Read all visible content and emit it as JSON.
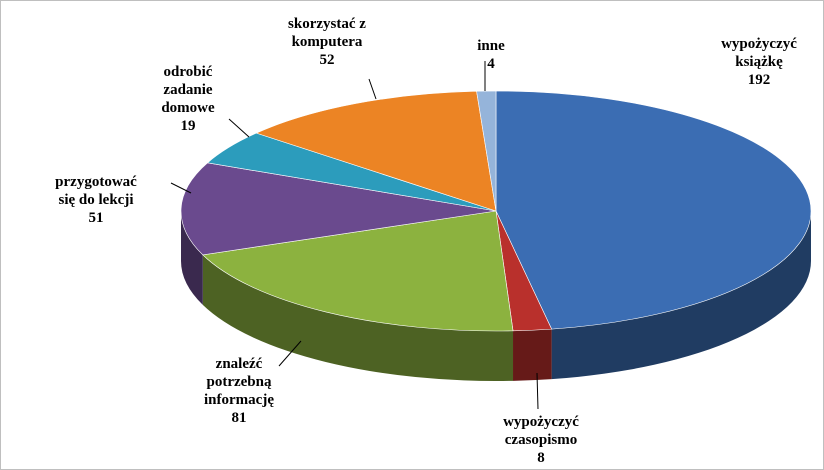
{
  "chart_data": {
    "type": "pie3d",
    "categories": [
      "wypożyczyć\nksiążkę",
      "wypożyczyć\nczasopismo",
      "znaleźć\npotrzebną\ninformację",
      "przygotować\nsię do lekcji",
      "odrobić\nzadanie\ndomowe",
      "skorzystać z\nkomputera",
      "inne"
    ],
    "values": [
      192,
      8,
      81,
      51,
      19,
      52,
      4
    ],
    "colors": [
      "#3b6db3",
      "#b9302c",
      "#8cb23f",
      "#6a4a8e",
      "#2c9cbc",
      "#ec8424",
      "#95b4da"
    ]
  }
}
